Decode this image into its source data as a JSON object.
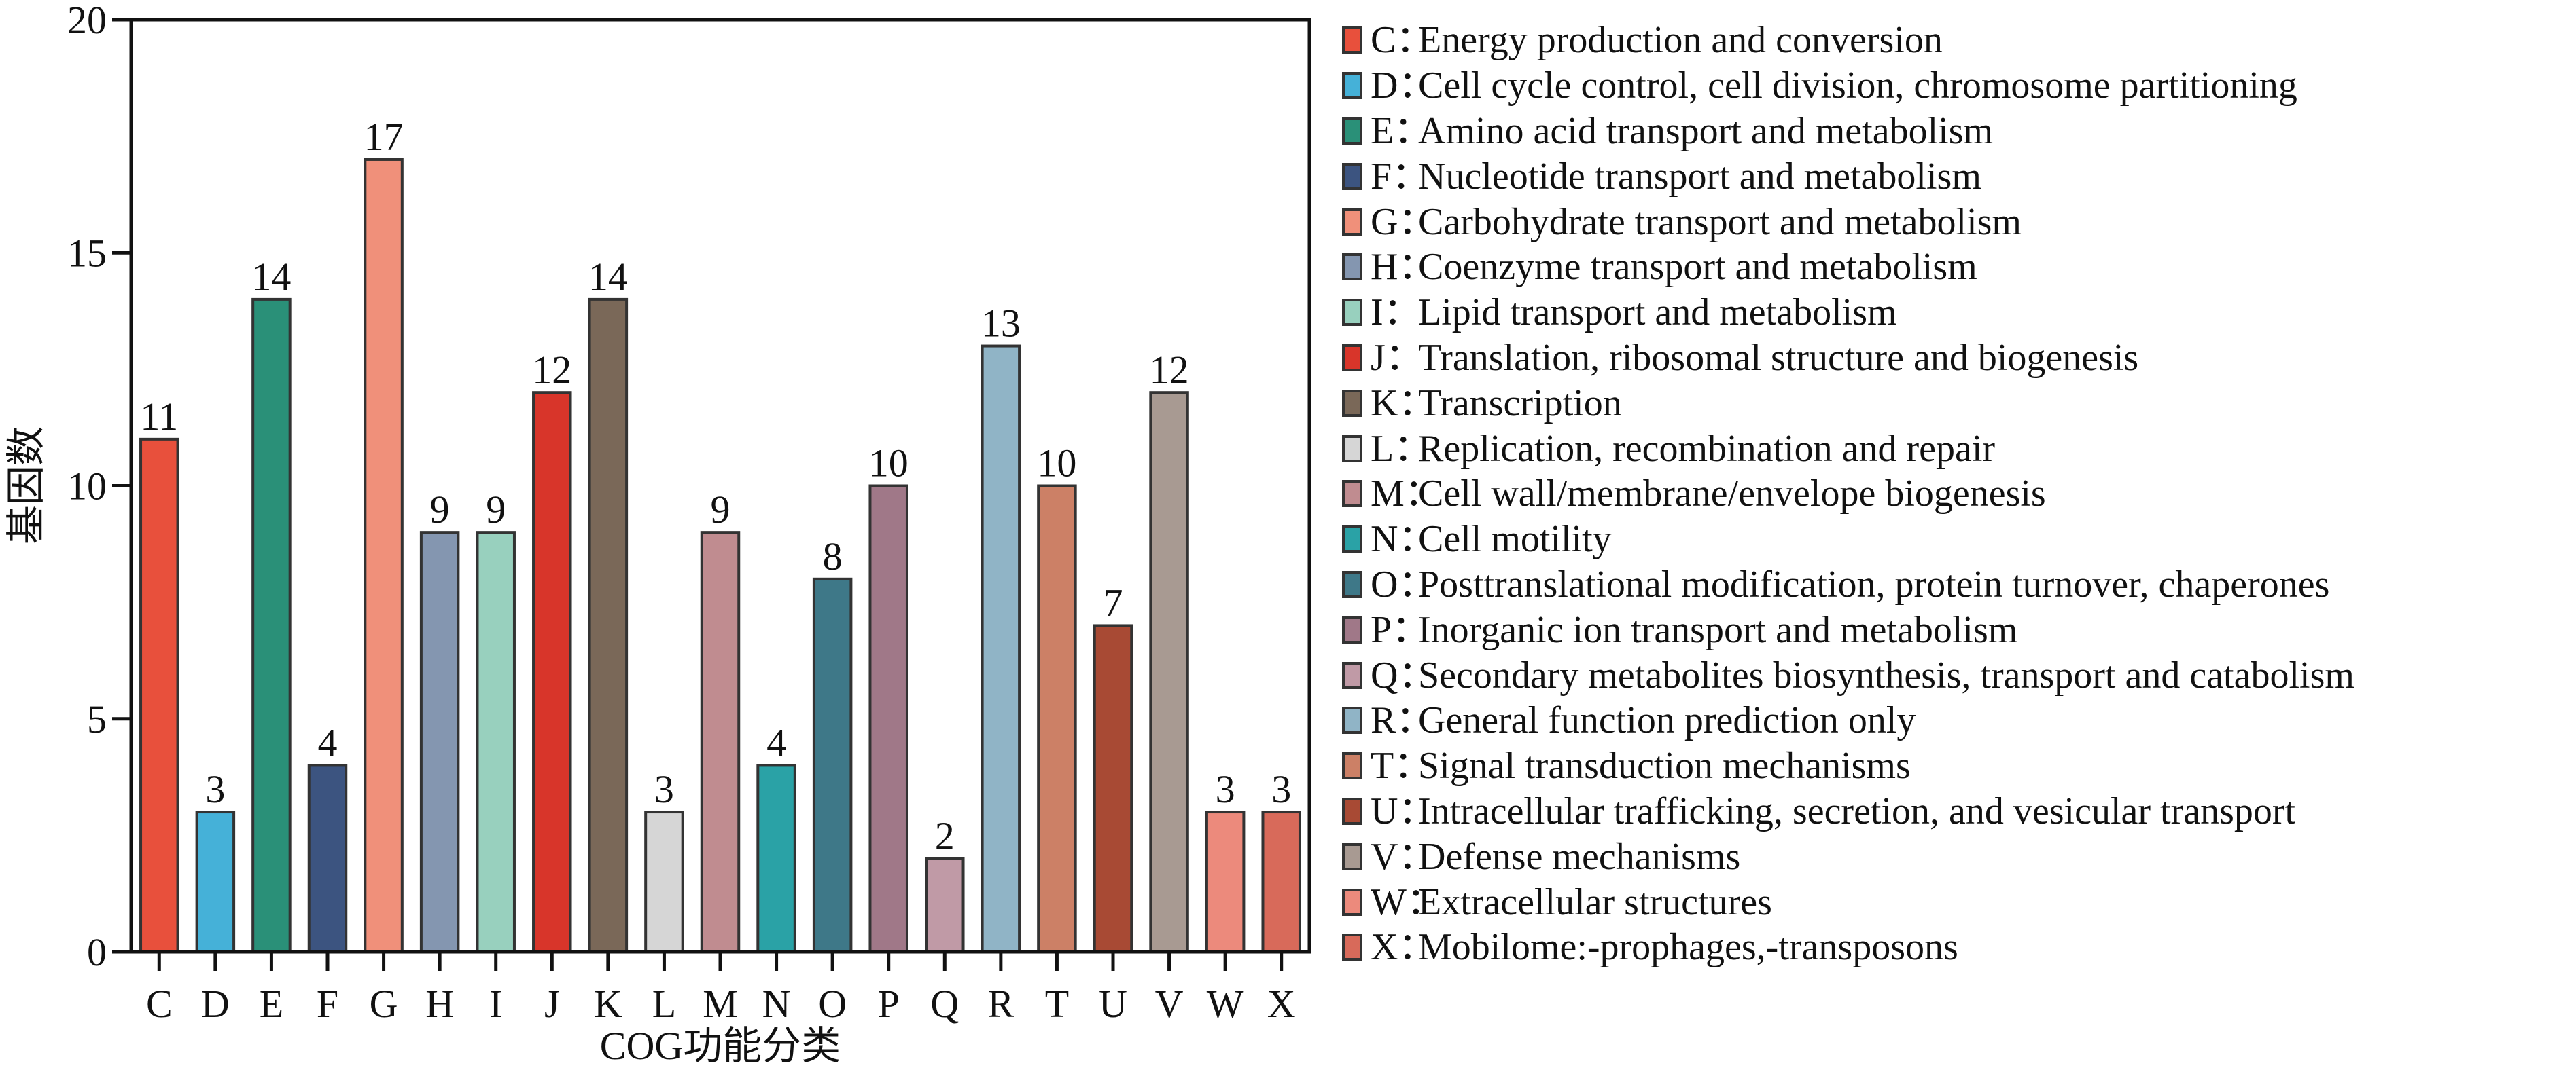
{
  "chart_data": {
    "type": "bar",
    "title": "",
    "xlabel": "COG功能分类",
    "ylabel": "基因数",
    "ylim": [
      0,
      20
    ],
    "yticks": [
      0,
      5,
      10,
      15,
      20
    ],
    "grid": false,
    "legend_position": "right",
    "categories": [
      "C",
      "D",
      "E",
      "F",
      "G",
      "H",
      "I",
      "J",
      "K",
      "L",
      "M",
      "N",
      "O",
      "P",
      "Q",
      "R",
      "T",
      "U",
      "V",
      "W",
      "X"
    ],
    "values": [
      11,
      3,
      14,
      4,
      17,
      9,
      9,
      12,
      14,
      3,
      9,
      4,
      8,
      10,
      2,
      13,
      10,
      7,
      12,
      3,
      3
    ],
    "colors": [
      "#e8503c",
      "#45b1d8",
      "#2a9078",
      "#3c5480",
      "#f0907a",
      "#8496b0",
      "#98d0be",
      "#d8352a",
      "#7a6858",
      "#d6d6d6",
      "#c08c90",
      "#2aa2a6",
      "#3e7888",
      "#a07888",
      "#c09aa6",
      "#90b4c6",
      "#cc8066",
      "#a84a34",
      "#a89a92",
      "#ec8a7c",
      "#d86a5a"
    ],
    "data_labels": [
      "11",
      "3",
      "14",
      "4",
      "17",
      "9",
      "9",
      "12",
      "14",
      "3",
      "9",
      "4",
      "8",
      "10",
      "2",
      "13",
      "10",
      "7",
      "12",
      "3",
      "3"
    ],
    "legend": [
      {
        "code": "C：",
        "text": "Energy production and conversion"
      },
      {
        "code": "D：",
        "text": "Cell cycle control, cell division, chromosome partitioning"
      },
      {
        "code": "E：",
        "text": "Amino acid transport and metabolism"
      },
      {
        "code": "F：",
        "text": "Nucleotide transport and metabolism"
      },
      {
        "code": "G：",
        "text": "Carbohydrate transport and metabolism"
      },
      {
        "code": "H：",
        "text": "Coenzyme transport and metabolism"
      },
      {
        "code": "I：",
        "text": "Lipid transport and metabolism"
      },
      {
        "code": "J：",
        "text": "Translation, ribosomal structure and biogenesis"
      },
      {
        "code": "K：",
        "text": "Transcription"
      },
      {
        "code": "L：",
        "text": "Replication, recombination and repair"
      },
      {
        "code": "M：",
        "text": "Cell wall/membrane/envelope biogenesis"
      },
      {
        "code": "N：",
        "text": "Cell motility"
      },
      {
        "code": "O：",
        "text": "Posttranslational modification, protein turnover, chaperones"
      },
      {
        "code": "P：",
        "text": "Inorganic ion transport and metabolism"
      },
      {
        "code": "Q：",
        "text": "Secondary metabolites biosynthesis, transport and catabolism"
      },
      {
        "code": "R：",
        "text": "General function prediction only"
      },
      {
        "code": "T：",
        "text": "Signal transduction mechanisms"
      },
      {
        "code": "U：",
        "text": "Intracellular trafficking, secretion, and vesicular transport"
      },
      {
        "code": "V：",
        "text": "Defense mechanisms"
      },
      {
        "code": "W：",
        "text": "Extracellular structures"
      },
      {
        "code": "X：",
        "text": "Mobilome:-prophages,-transposons"
      }
    ]
  }
}
